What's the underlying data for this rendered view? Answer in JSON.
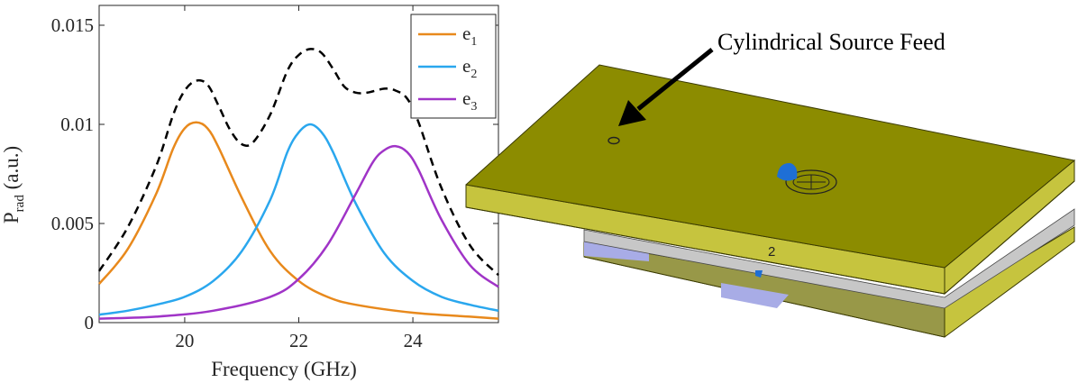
{
  "chart_data": {
    "type": "line",
    "xlabel": "Frequency (GHz)",
    "ylabel": {
      "main": "P",
      "sub": "rad",
      "unit": " (a.u.)"
    },
    "xlim": [
      18.5,
      25.5
    ],
    "ylim": [
      0,
      0.016
    ],
    "xticks": [
      20,
      22,
      24
    ],
    "xtick_labels": [
      "20",
      "22",
      "24"
    ],
    "yticks": [
      0,
      0.005,
      0.01,
      0.015
    ],
    "ytick_labels": [
      "0",
      "0.005",
      "0.01",
      "0.015"
    ],
    "grid": false,
    "legend_position": "top-right",
    "series": [
      {
        "name": "e1",
        "label_main": "e",
        "label_sub": "1",
        "color": "#E8891C",
        "style": "solid",
        "x": [
          18.5,
          19.0,
          19.5,
          19.8,
          20.0,
          20.2,
          20.4,
          20.6,
          21.0,
          21.5,
          22.0,
          22.5,
          23.0,
          24.0,
          25.0,
          25.5
        ],
        "y": [
          0.00195,
          0.0037,
          0.0065,
          0.0088,
          0.0098,
          0.0101,
          0.0098,
          0.0088,
          0.0063,
          0.0036,
          0.0021,
          0.0013,
          0.0009,
          0.0005,
          0.0003,
          0.0002
        ]
      },
      {
        "name": "e2",
        "label_main": "e",
        "label_sub": "2",
        "color": "#2AA7EE",
        "style": "solid",
        "x": [
          18.5,
          19.0,
          19.5,
          20.0,
          20.5,
          21.0,
          21.5,
          21.8,
          22.0,
          22.2,
          22.4,
          22.6,
          23.0,
          23.5,
          24.0,
          24.5,
          25.0,
          25.5
        ],
        "y": [
          0.0004,
          0.0006,
          0.0009,
          0.0013,
          0.0021,
          0.0036,
          0.0062,
          0.0086,
          0.0096,
          0.01,
          0.0096,
          0.0086,
          0.006,
          0.0035,
          0.0021,
          0.0013,
          0.0009,
          0.0006
        ]
      },
      {
        "name": "e3",
        "label_main": "e",
        "label_sub": "3",
        "color": "#A034C7",
        "style": "solid",
        "x": [
          18.5,
          19.5,
          20.5,
          21.5,
          22.0,
          22.5,
          23.0,
          23.3,
          23.5,
          23.7,
          23.9,
          24.1,
          24.5,
          25.0,
          25.5
        ],
        "y": [
          0.0002,
          0.0003,
          0.0006,
          0.0013,
          0.0022,
          0.0039,
          0.0065,
          0.0081,
          0.0087,
          0.0089,
          0.0086,
          0.0077,
          0.0052,
          0.0029,
          0.0018
        ]
      },
      {
        "name": "",
        "color": "#000000",
        "style": "dashed",
        "x": [
          18.5,
          19.0,
          19.5,
          19.8,
          20.0,
          20.2,
          20.4,
          20.6,
          20.8,
          21.0,
          21.2,
          21.5,
          21.8,
          22.0,
          22.2,
          22.4,
          22.6,
          22.8,
          23.0,
          23.2,
          23.5,
          23.7,
          23.9,
          24.1,
          24.5,
          25.0,
          25.5
        ],
        "y": [
          0.0026,
          0.0048,
          0.0079,
          0.0105,
          0.0117,
          0.0122,
          0.012,
          0.0109,
          0.0097,
          0.009,
          0.0091,
          0.0105,
          0.0127,
          0.0135,
          0.0138,
          0.0136,
          0.0128,
          0.0119,
          0.0116,
          0.0116,
          0.0118,
          0.0117,
          0.0113,
          0.0101,
          0.0068,
          0.0039,
          0.0024
        ]
      }
    ]
  },
  "illustration": {
    "annotation": "Cylindrical Source Feed",
    "port_label": "2",
    "colors": {
      "plate_top": "#8C8C00",
      "plate_side": "#C6C43E",
      "plate_bottom": "#989848",
      "port_blue": "#1E6FD6",
      "port_region": "#A8ACE6"
    }
  }
}
